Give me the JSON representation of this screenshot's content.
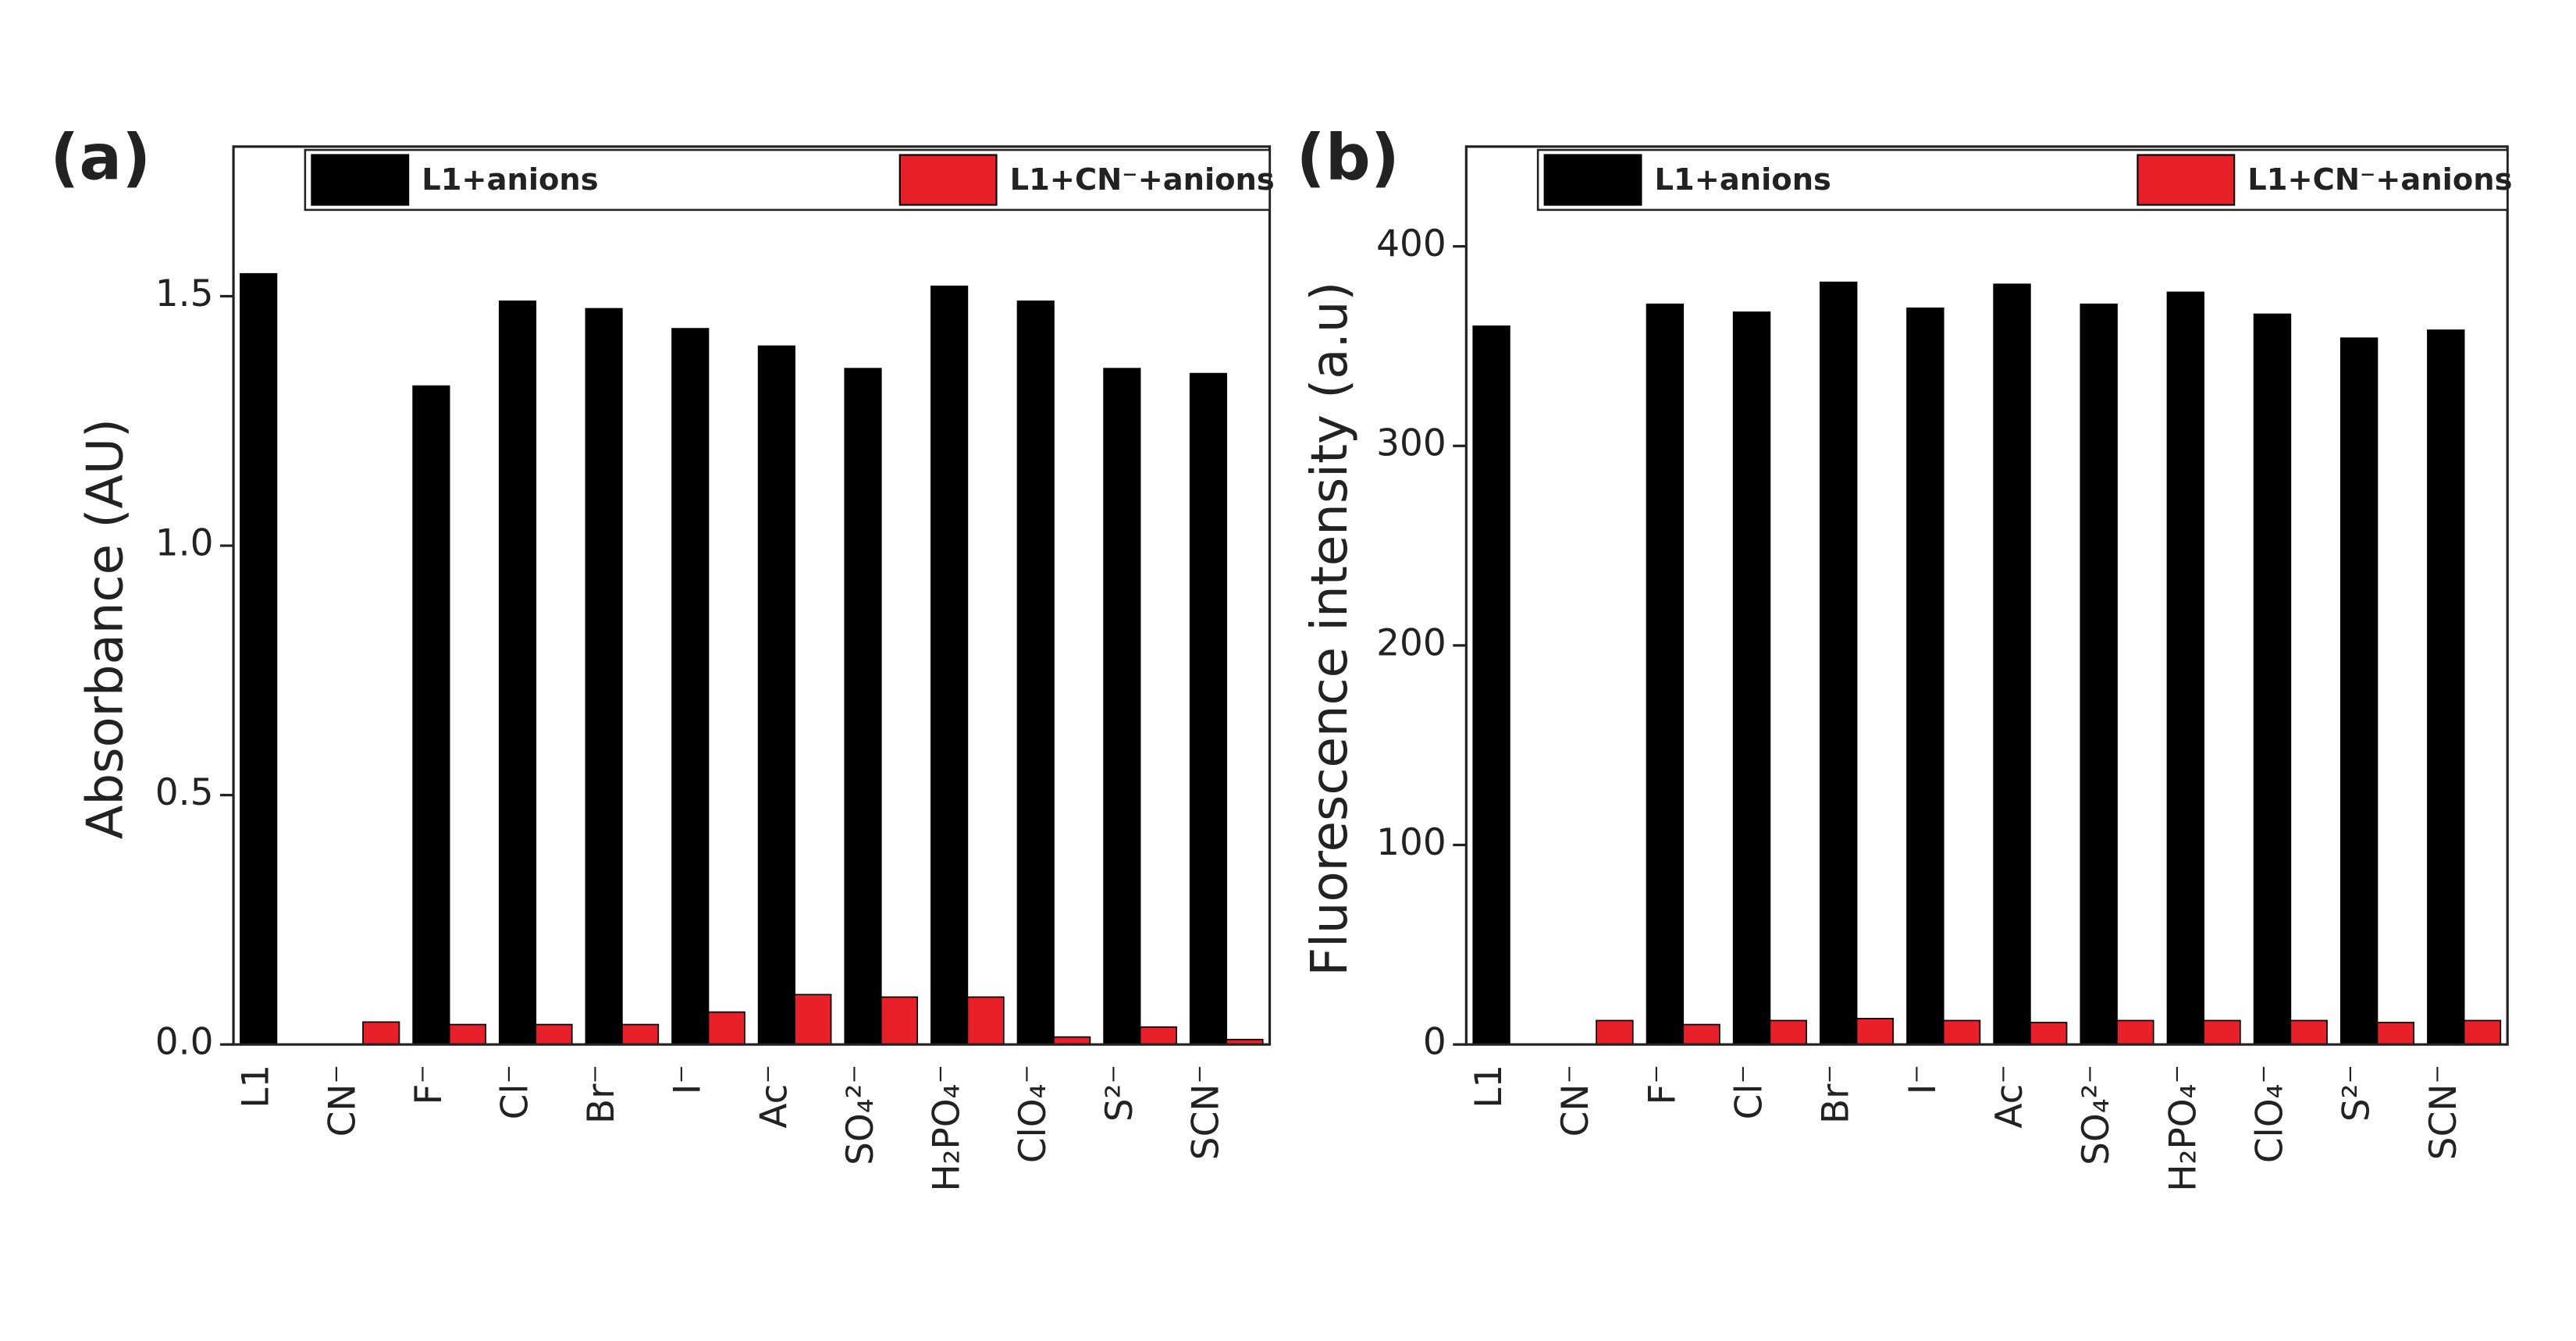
{
  "chart_data": [
    {
      "type": "bar",
      "panel": "(a)",
      "ylabel": "Absorbance (AU)",
      "categories": [
        "L1",
        "CN⁻",
        "F⁻",
        "Cl⁻",
        "Br⁻",
        "I⁻",
        "Ac⁻",
        "SO₄²⁻",
        "H₂PO₄⁻",
        "ClO₄⁻",
        "S²⁻",
        "SCN⁻"
      ],
      "series": [
        {
          "name": "L1+anions",
          "color": "#000000",
          "values": [
            1.545,
            null,
            1.32,
            1.49,
            1.475,
            1.435,
            1.4,
            1.355,
            1.52,
            1.49,
            1.355,
            1.345
          ]
        },
        {
          "name": "L1+CN⁻+anions",
          "color": "#e8202a",
          "values": [
            null,
            0.045,
            0.04,
            0.04,
            0.04,
            0.065,
            0.1,
            0.095,
            0.095,
            0.015,
            0.035,
            0.01
          ]
        }
      ],
      "ylim": [
        0,
        1.8
      ],
      "yticks": [
        {
          "value": 0,
          "label": "0.0"
        },
        0.5,
        {
          "value": 1,
          "label": "1.0"
        },
        1.5
      ],
      "legend": "top"
    },
    {
      "type": "bar",
      "panel": "(b)",
      "ylabel": "Fluorescence intensity (a.u)",
      "categories": [
        "L1",
        "CN⁻",
        "F⁻",
        "Cl⁻",
        "Br⁻",
        "I⁻",
        "Ac⁻",
        "SO₄²⁻",
        "H₂PO₄⁻",
        "ClO₄⁻",
        "S²⁻",
        "SCN⁻"
      ],
      "series": [
        {
          "name": "L1+anions",
          "color": "#000000",
          "values": [
            360,
            null,
            371,
            367,
            382,
            369,
            381,
            371,
            377,
            366,
            354,
            358
          ]
        },
        {
          "name": "L1+CN⁻+anions",
          "color": "#e8202a",
          "values": [
            null,
            12,
            10,
            12,
            13,
            12,
            11,
            12,
            12,
            12,
            11,
            12
          ]
        }
      ],
      "ylim": [
        0,
        450
      ],
      "yticks": [
        0,
        100,
        200,
        300,
        400
      ],
      "legend": "top"
    }
  ]
}
